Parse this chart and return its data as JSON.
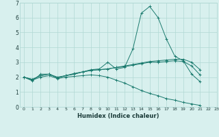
{
  "x": [
    0,
    1,
    2,
    3,
    4,
    5,
    6,
    7,
    8,
    9,
    10,
    11,
    12,
    13,
    14,
    15,
    16,
    17,
    18,
    19,
    20,
    21,
    22,
    23
  ],
  "line1": [
    2.0,
    1.75,
    2.2,
    2.2,
    2.0,
    2.1,
    2.25,
    2.35,
    2.5,
    2.55,
    3.0,
    2.55,
    2.65,
    3.9,
    6.3,
    6.75,
    6.0,
    4.55,
    3.4,
    3.1,
    2.2,
    1.7,
    null,
    null
  ],
  "line2": [
    2.0,
    1.85,
    2.1,
    2.2,
    1.95,
    2.1,
    2.2,
    2.35,
    2.45,
    2.5,
    2.55,
    2.65,
    2.75,
    2.85,
    2.95,
    3.05,
    3.1,
    3.15,
    3.2,
    3.2,
    3.0,
    2.5,
    null,
    null
  ],
  "line3": [
    2.0,
    1.85,
    2.1,
    2.2,
    1.95,
    2.1,
    2.2,
    2.35,
    2.45,
    2.5,
    2.55,
    2.65,
    2.7,
    2.8,
    2.9,
    3.0,
    3.0,
    3.05,
    3.1,
    3.05,
    2.75,
    2.15,
    null,
    null
  ],
  "line4": [
    2.0,
    1.8,
    2.0,
    2.1,
    1.9,
    2.0,
    2.05,
    2.1,
    2.15,
    2.1,
    2.0,
    1.8,
    1.6,
    1.35,
    1.1,
    0.9,
    0.75,
    0.55,
    0.45,
    0.3,
    0.2,
    0.1,
    null,
    null
  ],
  "color": "#1a7a6e",
  "bg_color": "#d8f0ee",
  "grid_color": "#b0d8d4",
  "xlabel": "Humidex (Indice chaleur)",
  "ylim": [
    0,
    7
  ],
  "xlim": [
    -0.5,
    23
  ],
  "yticks": [
    0,
    1,
    2,
    3,
    4,
    5,
    6,
    7
  ],
  "xticks": [
    0,
    1,
    2,
    3,
    4,
    5,
    6,
    7,
    8,
    9,
    10,
    11,
    12,
    13,
    14,
    15,
    16,
    17,
    18,
    19,
    20,
    21,
    22,
    23
  ]
}
